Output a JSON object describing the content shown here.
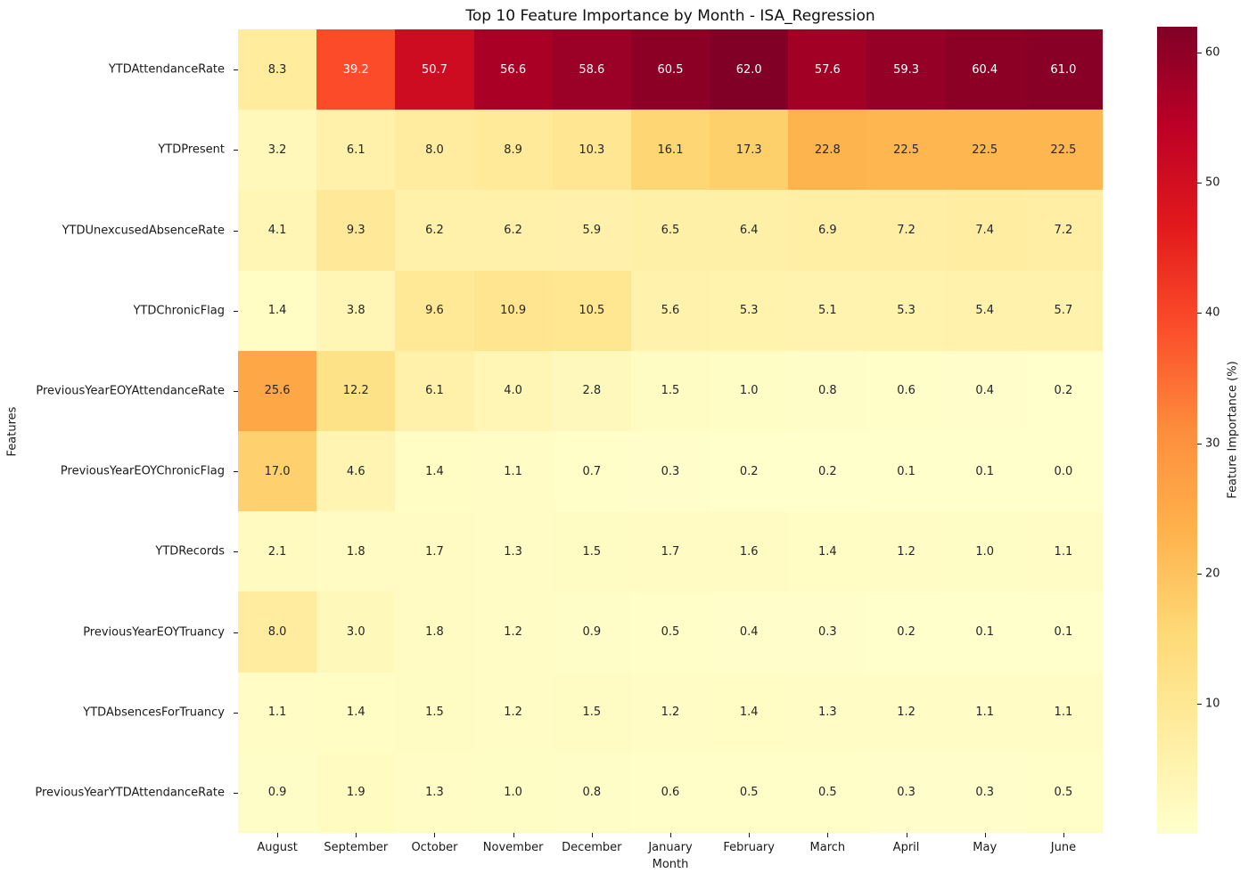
{
  "title": "Top 10 Feature Importance by Month - ISA_Regression",
  "chart_data": {
    "type": "heatmap",
    "title": "Top 10 Feature Importance by Month - ISA_Regression",
    "xlabel": "Month",
    "ylabel": "Features",
    "colorbar_label": "Feature Importance (%)",
    "colorbar_ticks": [
      10,
      20,
      30,
      40,
      50,
      60
    ],
    "colormap": "YlOrRd",
    "vmin": 0.0,
    "vmax": 62.0,
    "legend_position": "right-colorbar",
    "grid": false,
    "columns": [
      "August",
      "September",
      "October",
      "November",
      "December",
      "January",
      "February",
      "March",
      "April",
      "May",
      "June"
    ],
    "rows": [
      "YTDAttendanceRate",
      "YTDPresent",
      "YTDUnexcusedAbsenceRate",
      "YTDChronicFlag",
      "PreviousYearEOYAttendanceRate",
      "PreviousYearEOYChronicFlag",
      "YTDRecords",
      "PreviousYearEOYTruancy",
      "YTDAbsencesForTruancy",
      "PreviousYearYTDAttendanceRate"
    ],
    "values": [
      [
        8.3,
        39.2,
        50.7,
        56.6,
        58.6,
        60.5,
        62.0,
        57.6,
        59.3,
        60.4,
        61.0
      ],
      [
        3.2,
        6.1,
        8.0,
        8.9,
        10.3,
        16.1,
        17.3,
        22.8,
        22.5,
        22.5,
        22.5
      ],
      [
        4.1,
        9.3,
        6.2,
        6.2,
        5.9,
        6.5,
        6.4,
        6.9,
        7.2,
        7.4,
        7.2
      ],
      [
        1.4,
        3.8,
        9.6,
        10.9,
        10.5,
        5.6,
        5.3,
        5.1,
        5.3,
        5.4,
        5.7
      ],
      [
        25.6,
        12.2,
        6.1,
        4.0,
        2.8,
        1.5,
        1.0,
        0.8,
        0.6,
        0.4,
        0.2
      ],
      [
        17.0,
        4.6,
        1.4,
        1.1,
        0.7,
        0.3,
        0.2,
        0.2,
        0.1,
        0.1,
        0.0
      ],
      [
        2.1,
        1.8,
        1.7,
        1.3,
        1.5,
        1.7,
        1.6,
        1.4,
        1.2,
        1.0,
        1.1
      ],
      [
        8.0,
        3.0,
        1.8,
        1.2,
        0.9,
        0.5,
        0.4,
        0.3,
        0.2,
        0.1,
        0.1
      ],
      [
        1.1,
        1.4,
        1.5,
        1.2,
        1.5,
        1.2,
        1.4,
        1.3,
        1.2,
        1.1,
        1.1
      ],
      [
        0.9,
        1.9,
        1.3,
        1.0,
        0.8,
        0.6,
        0.5,
        0.5,
        0.3,
        0.3,
        0.5
      ]
    ]
  },
  "colors": {
    "colormap_stops": [
      "#ffffcc",
      "#ffeda0",
      "#fed976",
      "#feb24c",
      "#fd8d3c",
      "#fc4e2a",
      "#e31a1c",
      "#bd0026",
      "#800026"
    ],
    "dark_text": "#262626",
    "light_text": "#ffffff",
    "background": "#ffffff"
  }
}
